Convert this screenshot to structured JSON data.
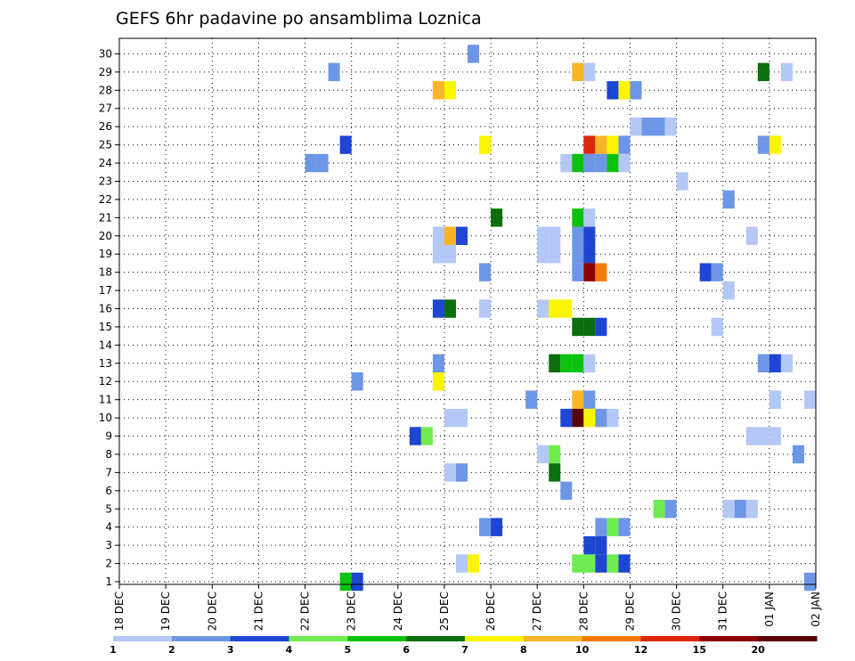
{
  "chart_data": {
    "type": "heatmap",
    "title": "GEFS 6hr padavine po ansamblima Loznica",
    "y_ticks": [
      "1",
      "2",
      "3",
      "4",
      "5",
      "6",
      "7",
      "8",
      "9",
      "10",
      "11",
      "12",
      "13",
      "14",
      "15",
      "16",
      "17",
      "18",
      "19",
      "20",
      "21",
      "22",
      "23",
      "24",
      "25",
      "26",
      "27",
      "28",
      "29",
      "30"
    ],
    "x_ticks": [
      "18 DEC",
      "19 DEC",
      "20 DEC",
      "21 DEC",
      "22 DEC",
      "23 DEC",
      "24 DEC",
      "25 DEC",
      "26 DEC",
      "27 DEC",
      "28 DEC",
      "29 DEC",
      "30 DEC",
      "31 DEC",
      "01 JAN",
      "02 JAN"
    ],
    "x_unit": "6-hour steps from 18 DEC 00Z",
    "x_range": [
      0,
      60
    ],
    "y_range": [
      1,
      30
    ],
    "grid": true,
    "color_scale": {
      "colors": [
        "#b4c8f5",
        "#6e96e6",
        "#1e46d2",
        "#6eec50",
        "#0cc20c",
        "#0c6e0c",
        "#faf500",
        "#fab428",
        "#f57a0c",
        "#dc280a",
        "#8c0000",
        "#5a0000"
      ],
      "labels": [
        "1",
        "2",
        "3",
        "4",
        "5",
        "6",
        "7",
        "8",
        "10",
        "12",
        "15",
        "20"
      ]
    },
    "cells": [
      {
        "m": 30,
        "t": 30.5,
        "c": 1
      },
      {
        "m": 29,
        "t": 18.5,
        "c": 1
      },
      {
        "m": 29,
        "t": 39.5,
        "c": 7
      },
      {
        "m": 29,
        "t": 40.5,
        "c": 0
      },
      {
        "m": 29,
        "t": 55.5,
        "c": 5
      },
      {
        "m": 29,
        "t": 57.5,
        "c": 0
      },
      {
        "m": 28,
        "t": 27.5,
        "c": 7
      },
      {
        "m": 28,
        "t": 28.5,
        "c": 6
      },
      {
        "m": 28,
        "t": 42.5,
        "c": 2
      },
      {
        "m": 28,
        "t": 43.5,
        "c": 6
      },
      {
        "m": 28,
        "t": 44.5,
        "c": 1
      },
      {
        "m": 26,
        "t": 44.5,
        "c": 0
      },
      {
        "m": 26,
        "t": 45.5,
        "c": 1
      },
      {
        "m": 26,
        "t": 46.5,
        "c": 1
      },
      {
        "m": 26,
        "t": 47.5,
        "c": 0
      },
      {
        "m": 25,
        "t": 19.5,
        "c": 2
      },
      {
        "m": 25,
        "t": 31.5,
        "c": 6
      },
      {
        "m": 25,
        "t": 40.5,
        "c": 9
      },
      {
        "m": 25,
        "t": 41.5,
        "c": 7
      },
      {
        "m": 25,
        "t": 42.5,
        "c": 6
      },
      {
        "m": 25,
        "t": 43.5,
        "c": 1
      },
      {
        "m": 25,
        "t": 55.5,
        "c": 1
      },
      {
        "m": 25,
        "t": 56.5,
        "c": 6
      },
      {
        "m": 24,
        "t": 16.5,
        "c": 1
      },
      {
        "m": 24,
        "t": 17.5,
        "c": 1
      },
      {
        "m": 24,
        "t": 38.5,
        "c": 0
      },
      {
        "m": 24,
        "t": 39.5,
        "c": 4
      },
      {
        "m": 24,
        "t": 40.5,
        "c": 1
      },
      {
        "m": 24,
        "t": 41.5,
        "c": 1
      },
      {
        "m": 24,
        "t": 42.5,
        "c": 4
      },
      {
        "m": 24,
        "t": 43.5,
        "c": 0
      },
      {
        "m": 23,
        "t": 48.5,
        "c": 0
      },
      {
        "m": 22,
        "t": 52.5,
        "c": 1
      },
      {
        "m": 21,
        "t": 32.5,
        "c": 5
      },
      {
        "m": 21,
        "t": 39.5,
        "c": 4
      },
      {
        "m": 21,
        "t": 40.5,
        "c": 0
      },
      {
        "m": 20,
        "t": 27.5,
        "c": 0
      },
      {
        "m": 20,
        "t": 28.5,
        "c": 7
      },
      {
        "m": 20,
        "t": 29.5,
        "c": 2
      },
      {
        "m": 20,
        "t": 36.5,
        "c": 0
      },
      {
        "m": 20,
        "t": 37.5,
        "c": 0
      },
      {
        "m": 20,
        "t": 39.5,
        "c": 1
      },
      {
        "m": 20,
        "t": 40.5,
        "c": 2
      },
      {
        "m": 20,
        "t": 54.5,
        "c": 0
      },
      {
        "m": 19,
        "t": 27.5,
        "c": 0
      },
      {
        "m": 19,
        "t": 28.5,
        "c": 0
      },
      {
        "m": 19,
        "t": 36.5,
        "c": 0
      },
      {
        "m": 19,
        "t": 37.5,
        "c": 0
      },
      {
        "m": 19,
        "t": 39.5,
        "c": 1
      },
      {
        "m": 19,
        "t": 40.5,
        "c": 2
      },
      {
        "m": 18,
        "t": 31.5,
        "c": 1
      },
      {
        "m": 18,
        "t": 39.5,
        "c": 1
      },
      {
        "m": 18,
        "t": 40.5,
        "c": 10
      },
      {
        "m": 18,
        "t": 41.5,
        "c": 8
      },
      {
        "m": 18,
        "t": 50.5,
        "c": 2
      },
      {
        "m": 18,
        "t": 51.5,
        "c": 1
      },
      {
        "m": 17,
        "t": 52.5,
        "c": 0
      },
      {
        "m": 16,
        "t": 27.5,
        "c": 2
      },
      {
        "m": 16,
        "t": 28.5,
        "c": 5
      },
      {
        "m": 16,
        "t": 31.5,
        "c": 0
      },
      {
        "m": 16,
        "t": 36.5,
        "c": 0
      },
      {
        "m": 16,
        "t": 37.5,
        "c": 6
      },
      {
        "m": 16,
        "t": 38.5,
        "c": 6
      },
      {
        "m": 15,
        "t": 39.5,
        "c": 5
      },
      {
        "m": 15,
        "t": 40.5,
        "c": 5
      },
      {
        "m": 15,
        "t": 41.5,
        "c": 2
      },
      {
        "m": 15,
        "t": 51.5,
        "c": 0
      },
      {
        "m": 13,
        "t": 27.5,
        "c": 1
      },
      {
        "m": 13,
        "t": 37.5,
        "c": 5
      },
      {
        "m": 13,
        "t": 38.5,
        "c": 4
      },
      {
        "m": 13,
        "t": 39.5,
        "c": 4
      },
      {
        "m": 13,
        "t": 40.5,
        "c": 0
      },
      {
        "m": 13,
        "t": 55.5,
        "c": 1
      },
      {
        "m": 13,
        "t": 56.5,
        "c": 2
      },
      {
        "m": 13,
        "t": 57.5,
        "c": 0
      },
      {
        "m": 12,
        "t": 20.5,
        "c": 1
      },
      {
        "m": 12,
        "t": 27.5,
        "c": 6
      },
      {
        "m": 11,
        "t": 35.5,
        "c": 1
      },
      {
        "m": 11,
        "t": 39.5,
        "c": 7
      },
      {
        "m": 11,
        "t": 40.5,
        "c": 1
      },
      {
        "m": 11,
        "t": 56.5,
        "c": 0
      },
      {
        "m": 11,
        "t": 59.5,
        "c": 0
      },
      {
        "m": 10,
        "t": 28.5,
        "c": 0
      },
      {
        "m": 10,
        "t": 29.5,
        "c": 0
      },
      {
        "m": 10,
        "t": 38.5,
        "c": 2
      },
      {
        "m": 10,
        "t": 39.5,
        "c": 11
      },
      {
        "m": 10,
        "t": 40.5,
        "c": 6
      },
      {
        "m": 10,
        "t": 41.5,
        "c": 1
      },
      {
        "m": 10,
        "t": 42.5,
        "c": 0
      },
      {
        "m": 9,
        "t": 25.5,
        "c": 2
      },
      {
        "m": 9,
        "t": 26.5,
        "c": 3
      },
      {
        "m": 9,
        "t": 54.5,
        "c": 0
      },
      {
        "m": 9,
        "t": 55.5,
        "c": 0
      },
      {
        "m": 9,
        "t": 56.5,
        "c": 0
      },
      {
        "m": 8,
        "t": 36.5,
        "c": 0
      },
      {
        "m": 8,
        "t": 37.5,
        "c": 3
      },
      {
        "m": 8,
        "t": 58.5,
        "c": 1
      },
      {
        "m": 7,
        "t": 28.5,
        "c": 0
      },
      {
        "m": 7,
        "t": 29.5,
        "c": 1
      },
      {
        "m": 7,
        "t": 37.5,
        "c": 5
      },
      {
        "m": 6,
        "t": 38.5,
        "c": 1
      },
      {
        "m": 5,
        "t": 46.5,
        "c": 3
      },
      {
        "m": 5,
        "t": 47.5,
        "c": 1
      },
      {
        "m": 5,
        "t": 52.5,
        "c": 0
      },
      {
        "m": 5,
        "t": 53.5,
        "c": 1
      },
      {
        "m": 5,
        "t": 54.5,
        "c": 0
      },
      {
        "m": 4,
        "t": 31.5,
        "c": 1
      },
      {
        "m": 4,
        "t": 32.5,
        "c": 2
      },
      {
        "m": 4,
        "t": 41.5,
        "c": 1
      },
      {
        "m": 4,
        "t": 42.5,
        "c": 3
      },
      {
        "m": 4,
        "t": 43.5,
        "c": 1
      },
      {
        "m": 3,
        "t": 40.5,
        "c": 2
      },
      {
        "m": 3,
        "t": 41.5,
        "c": 2
      },
      {
        "m": 2,
        "t": 29.5,
        "c": 0
      },
      {
        "m": 2,
        "t": 30.5,
        "c": 6
      },
      {
        "m": 2,
        "t": 39.5,
        "c": 3
      },
      {
        "m": 2,
        "t": 40.5,
        "c": 3
      },
      {
        "m": 2,
        "t": 41.5,
        "c": 2
      },
      {
        "m": 2,
        "t": 42.5,
        "c": 3
      },
      {
        "m": 2,
        "t": 43.5,
        "c": 2
      },
      {
        "m": 1,
        "t": 19.5,
        "c": 4
      },
      {
        "m": 1,
        "t": 20.5,
        "c": 2
      },
      {
        "m": 1,
        "t": 59.5,
        "c": 1
      }
    ]
  }
}
